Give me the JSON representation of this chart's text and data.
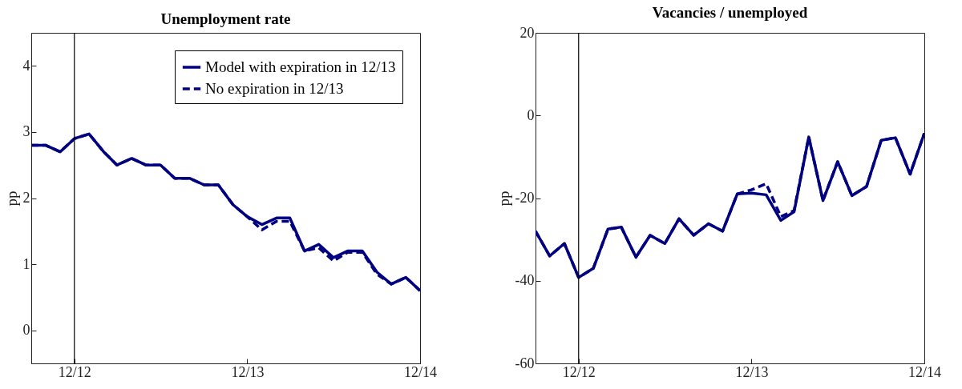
{
  "chart_data": [
    {
      "type": "line",
      "title": "Unemployment rate",
      "ylabel": "pp",
      "x": [
        "2012-09",
        "2012-10",
        "2012-11",
        "2012-12",
        "2013-01",
        "2013-02",
        "2013-03",
        "2013-04",
        "2013-05",
        "2013-06",
        "2013-07",
        "2013-08",
        "2013-09",
        "2013-10",
        "2013-11",
        "2013-12",
        "2014-01",
        "2014-02",
        "2014-03",
        "2014-04",
        "2014-05",
        "2014-06",
        "2014-07",
        "2014-08",
        "2014-09",
        "2014-10",
        "2014-11",
        "2014-12"
      ],
      "series": [
        {
          "name": "Model with expiration in 12/13",
          "color": "#000080",
          "line_style": "solid",
          "values": [
            2.8,
            2.8,
            2.7,
            2.9,
            2.97,
            2.7,
            2.5,
            2.6,
            2.5,
            2.5,
            2.3,
            2.3,
            2.2,
            2.2,
            1.9,
            1.72,
            1.6,
            1.7,
            1.7,
            1.2,
            1.3,
            1.1,
            1.2,
            1.2,
            0.88,
            0.7,
            0.8,
            0.6
          ]
        },
        {
          "name": "No expiration in 12/13",
          "color": "#000080",
          "line_style": "dashed",
          "values": [
            2.8,
            2.8,
            2.7,
            2.9,
            2.97,
            2.7,
            2.5,
            2.6,
            2.5,
            2.5,
            2.3,
            2.3,
            2.2,
            2.2,
            1.9,
            1.72,
            1.52,
            1.65,
            1.65,
            1.2,
            1.25,
            1.05,
            1.18,
            1.18,
            0.85,
            0.7,
            0.8,
            0.6
          ]
        }
      ],
      "xlim": [
        "2012-09",
        "2014-12"
      ],
      "xticks": [
        {
          "value": "2012-12",
          "label": "12/12"
        },
        {
          "value": "2013-12",
          "label": "12/13"
        },
        {
          "value": "2014-12",
          "label": "12/14"
        }
      ],
      "ylim": [
        -0.5,
        4.5
      ],
      "yticks": [
        0,
        1,
        2,
        3,
        4
      ],
      "ref_lines": [
        {
          "axis": "x",
          "value": "2012-12",
          "color": "#000000"
        }
      ],
      "legend": "top right",
      "grid": false
    },
    {
      "type": "line",
      "title": "Vacancies / unemployed",
      "ylabel": "pp",
      "x": [
        "2012-09",
        "2012-10",
        "2012-11",
        "2012-12",
        "2013-01",
        "2013-02",
        "2013-03",
        "2013-04",
        "2013-05",
        "2013-06",
        "2013-07",
        "2013-08",
        "2013-09",
        "2013-10",
        "2013-11",
        "2013-12",
        "2014-01",
        "2014-02",
        "2014-03",
        "2014-04",
        "2014-05",
        "2014-06",
        "2014-07",
        "2014-08",
        "2014-09",
        "2014-10",
        "2014-11",
        "2014-12"
      ],
      "series": [
        {
          "color": "#000080",
          "line_style": "solid",
          "values": [
            -28,
            -34,
            -31,
            -39.2,
            -37,
            -27.5,
            -27,
            -34.3,
            -29,
            -31,
            -25,
            -29,
            -26.2,
            -28,
            -19,
            -18.8,
            -19.2,
            -25.4,
            -23.3,
            -5.2,
            -20.6,
            -11.2,
            -19.4,
            -17.2,
            -6,
            -5.4,
            -14.2,
            -4.3
          ]
        },
        {
          "color": "#000080",
          "line_style": "dashed",
          "values": [
            -28,
            -34,
            -31,
            -39.2,
            -37,
            -27.5,
            -27,
            -34.3,
            -29,
            -31,
            -25,
            -29,
            -26.2,
            -28,
            -19,
            -18,
            -16.5,
            -24.5,
            -23,
            -5.2,
            -20.6,
            -11.2,
            -19.4,
            -17.2,
            -6,
            -5.4,
            -14.2,
            -4.3
          ]
        }
      ],
      "xlim": [
        "2012-09",
        "2014-12"
      ],
      "xticks": [
        {
          "value": "2012-12",
          "label": "12/12"
        },
        {
          "value": "2013-12",
          "label": "12/13"
        },
        {
          "value": "2014-12",
          "label": "12/14"
        }
      ],
      "ylim": [
        -60,
        20
      ],
      "yticks": [
        -60,
        -40,
        -20,
        0,
        20
      ],
      "ref_lines": [
        {
          "axis": "x",
          "value": "2012-12",
          "color": "#000000"
        }
      ],
      "legend": false,
      "grid": false
    }
  ]
}
